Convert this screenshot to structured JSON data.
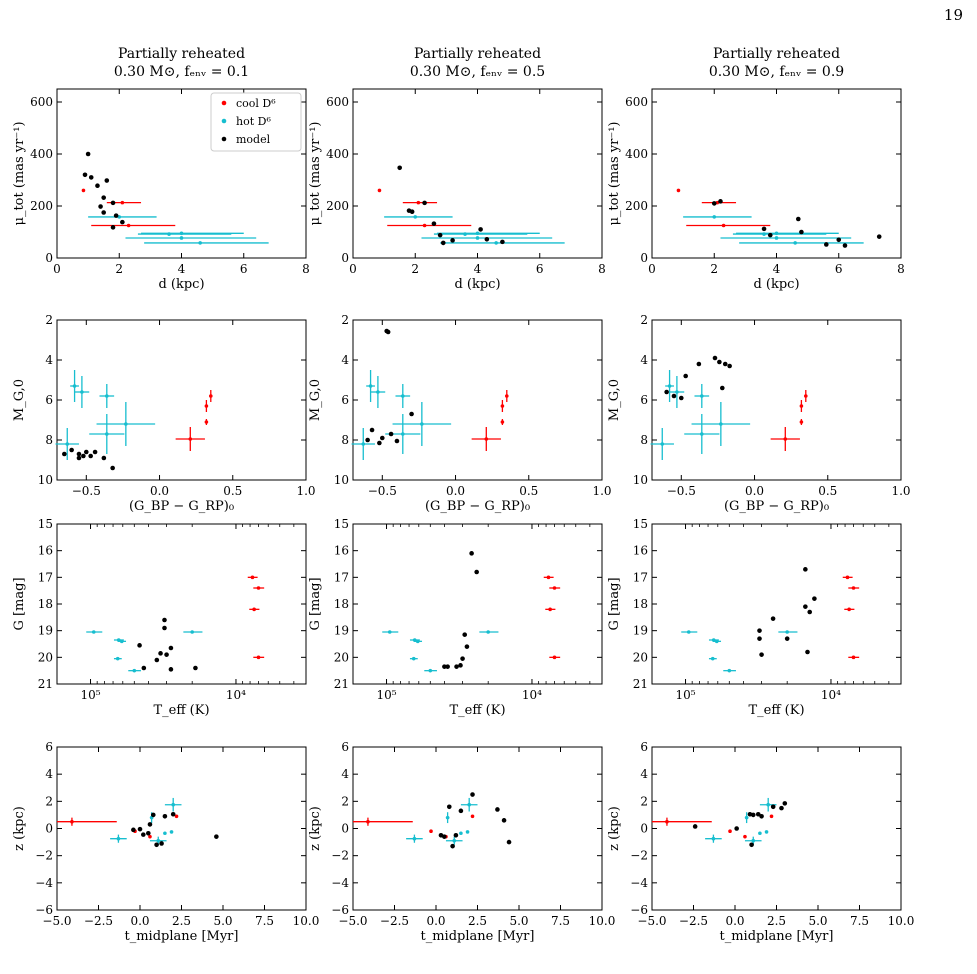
{
  "page": {
    "number": "19"
  },
  "colors": {
    "cool": "#ff0000",
    "hot": "#17becf",
    "model": "#000000"
  },
  "columns": [
    {
      "title_line1": "Partially reheated",
      "title_line2": "0.30 M⊙,  fₑₙᵥ = 0.1"
    },
    {
      "title_line1": "Partially reheated",
      "title_line2": "0.30 M⊙,  fₑₙᵥ = 0.5"
    },
    {
      "title_line1": "Partially reheated",
      "title_line2": "0.30 M⊙,  fₑₙᵥ = 0.9"
    }
  ],
  "legend": {
    "cool": "cool D⁶",
    "hot": "hot D⁶",
    "model": "model"
  },
  "chart_data": [
    {
      "type": "scatter",
      "row": "pm",
      "xlabel": "d (kpc)",
      "ylabel": "μ_tot (mas yr⁻¹)",
      "xlim": [
        0,
        8
      ],
      "ylim": [
        0,
        650
      ],
      "xticks": [
        0,
        2,
        4,
        6,
        8
      ],
      "yticks": [
        0,
        200,
        400,
        600
      ],
      "x_tick_labels": [
        "0",
        "2",
        "4",
        "6",
        "8"
      ],
      "y_tick_labels": [
        "0",
        "200",
        "400",
        "600"
      ],
      "cool": [
        {
          "x": 0.85,
          "y": 260
        },
        {
          "x": 2.1,
          "y": 213,
          "xerr": [
            0.5,
            0.6
          ]
        },
        {
          "x": 2.3,
          "y": 125,
          "xerr": [
            1.2,
            1.5
          ]
        }
      ],
      "hot": [
        {
          "x": 2.0,
          "y": 158,
          "xerr": [
            1.0,
            1.2
          ]
        },
        {
          "x": 3.6,
          "y": 92,
          "xerr": [
            1.0,
            2.0
          ]
        },
        {
          "x": 4.0,
          "y": 95,
          "xerr": [
            1.3,
            2.0
          ]
        },
        {
          "x": 4.0,
          "y": 77,
          "xerr": [
            1.8,
            2.4
          ]
        },
        {
          "x": 4.6,
          "y": 58,
          "xerr": [
            1.8,
            2.2
          ]
        }
      ],
      "model": [
        [
          [
            1.0,
            400
          ],
          [
            0.9,
            320
          ],
          [
            1.1,
            310
          ],
          [
            1.3,
            278
          ],
          [
            1.6,
            298
          ],
          [
            1.5,
            232
          ],
          [
            1.4,
            198
          ],
          [
            1.5,
            175
          ],
          [
            1.8,
            212
          ],
          [
            1.9,
            163
          ],
          [
            2.1,
            138
          ],
          [
            1.8,
            118
          ]
        ],
        [
          [
            1.5,
            347
          ],
          [
            1.8,
            182
          ],
          [
            1.9,
            178
          ],
          [
            2.3,
            212
          ],
          [
            2.6,
            132
          ],
          [
            2.8,
            88
          ],
          [
            2.9,
            58
          ],
          [
            3.2,
            68
          ],
          [
            4.1,
            110
          ],
          [
            4.3,
            72
          ],
          [
            4.8,
            62
          ]
        ],
        [
          [
            2.0,
            210
          ],
          [
            2.2,
            218
          ],
          [
            3.6,
            112
          ],
          [
            3.8,
            88
          ],
          [
            4.7,
            150
          ],
          [
            4.8,
            100
          ],
          [
            5.6,
            52
          ],
          [
            6.0,
            70
          ],
          [
            6.2,
            48
          ],
          [
            7.3,
            82
          ]
        ]
      ]
    },
    {
      "type": "scatter",
      "row": "cmd",
      "xlabel": "(G_BP − G_RP)₀",
      "ylabel": "M_G,0",
      "xlim": [
        -0.7,
        1.0
      ],
      "ylim": [
        10,
        2
      ],
      "y_inverted": true,
      "xticks": [
        -0.5,
        0.0,
        0.5,
        1.0
      ],
      "yticks": [
        2,
        4,
        6,
        8,
        10
      ],
      "x_tick_labels": [
        "−0.5",
        "0.0",
        "0.5",
        "1.0"
      ],
      "y_tick_labels": [
        "2",
        "4",
        "6",
        "8",
        "10"
      ],
      "cool": [
        {
          "x": 0.21,
          "y": 7.95,
          "xerr": [
            0.1,
            0.1
          ],
          "yerr": [
            0.6,
            0.6
          ]
        },
        {
          "x": 0.32,
          "y": 6.3,
          "yerr": [
            0.3,
            0.3
          ]
        },
        {
          "x": 0.35,
          "y": 5.8,
          "yerr": [
            0.3,
            0.3
          ]
        },
        {
          "x": 0.32,
          "y": 7.1,
          "yerr": [
            0.15,
            0.15
          ]
        }
      ],
      "hot": [
        {
          "x": -0.58,
          "y": 5.3,
          "xerr": [
            0.03,
            0.03
          ],
          "yerr": [
            0.8,
            0.8
          ]
        },
        {
          "x": -0.53,
          "y": 5.6,
          "xerr": [
            0.05,
            0.05
          ],
          "yerr": [
            0.8,
            0.8
          ]
        },
        {
          "x": -0.36,
          "y": 5.8,
          "xerr": [
            0.05,
            0.05
          ],
          "yerr": [
            0.6,
            0.6
          ]
        },
        {
          "x": -0.63,
          "y": 8.2,
          "xerr": [
            0.08,
            0.08
          ],
          "yerr": [
            0.8,
            0.8
          ]
        },
        {
          "x": -0.36,
          "y": 7.7,
          "xerr": [
            0.12,
            0.12
          ],
          "yerr": [
            1.0,
            1.0
          ]
        },
        {
          "x": -0.23,
          "y": 7.2,
          "xerr": [
            0.2,
            0.2
          ],
          "yerr": [
            1.1,
            1.1
          ]
        }
      ],
      "model": [
        [
          [
            -0.65,
            8.7
          ],
          [
            -0.6,
            8.5
          ],
          [
            -0.55,
            8.7
          ],
          [
            -0.52,
            8.8
          ],
          [
            -0.5,
            8.6
          ],
          [
            -0.47,
            8.8
          ],
          [
            -0.44,
            8.6
          ],
          [
            -0.38,
            8.9
          ],
          [
            -0.32,
            9.4
          ],
          [
            -0.55,
            8.9
          ]
        ],
        [
          [
            -0.47,
            2.55
          ],
          [
            -0.46,
            2.6
          ],
          [
            -0.3,
            6.7
          ],
          [
            -0.6,
            8.0
          ],
          [
            -0.57,
            7.5
          ],
          [
            -0.5,
            7.9
          ],
          [
            -0.44,
            7.7
          ],
          [
            -0.4,
            8.05
          ],
          [
            -0.52,
            8.15
          ]
        ],
        [
          [
            -0.6,
            5.6
          ],
          [
            -0.55,
            5.8
          ],
          [
            -0.5,
            5.9
          ],
          [
            -0.47,
            4.8
          ],
          [
            -0.38,
            4.2
          ],
          [
            -0.27,
            3.9
          ],
          [
            -0.24,
            4.1
          ],
          [
            -0.2,
            4.2
          ],
          [
            -0.17,
            4.3
          ],
          [
            -0.22,
            5.4
          ]
        ]
      ]
    },
    {
      "type": "scatter",
      "row": "teff",
      "xlabel": "T_eff (K)",
      "ylabel": "G [mag]",
      "xscale": "log",
      "x_inverted": true,
      "xlim": [
        170000,
        3300
      ],
      "ylim": [
        21,
        15
      ],
      "y_inverted": true,
      "xticks": [
        100000,
        10000
      ],
      "yticks": [
        15,
        16,
        17,
        18,
        19,
        20,
        21
      ],
      "x_tick_labels": [
        "10⁵",
        "10⁴"
      ],
      "y_tick_labels": [
        "15",
        "16",
        "17",
        "18",
        "19",
        "20",
        "21"
      ],
      "cool": [
        {
          "x": 7700,
          "y": 17.0,
          "xerr": [
            600,
            600
          ]
        },
        {
          "x": 7000,
          "y": 17.4,
          "xerr": [
            600,
            600
          ]
        },
        {
          "x": 7500,
          "y": 18.2,
          "xerr": [
            600,
            600
          ]
        },
        {
          "x": 7000,
          "y": 20.0,
          "xerr": [
            600,
            600
          ]
        }
      ],
      "hot": [
        {
          "x": 95000,
          "y": 19.05,
          "xerr": [
            12000,
            12000
          ]
        },
        {
          "x": 64000,
          "y": 19.35,
          "xerr": [
            5000,
            5000
          ]
        },
        {
          "x": 61000,
          "y": 19.4,
          "xerr": [
            4000,
            4000
          ]
        },
        {
          "x": 65000,
          "y": 20.05,
          "xerr": [
            4000,
            4000
          ]
        },
        {
          "x": 50000,
          "y": 20.5,
          "xerr": [
            5000,
            5000
          ]
        },
        {
          "x": 20000,
          "y": 19.05,
          "xerr": [
            3000,
            3000
          ]
        }
      ],
      "model": [
        [
          [
            46000,
            19.55
          ],
          [
            43000,
            20.4
          ],
          [
            31000,
            18.6
          ],
          [
            31000,
            18.9
          ],
          [
            28000,
            19.65
          ],
          [
            33000,
            19.85
          ],
          [
            30000,
            19.9
          ],
          [
            28000,
            20.45
          ],
          [
            19000,
            20.4
          ],
          [
            35000,
            20.1
          ]
        ],
        [
          [
            26000,
            16.1
          ],
          [
            24000,
            16.8
          ],
          [
            29000,
            19.15
          ],
          [
            28000,
            19.6
          ],
          [
            30000,
            20.05
          ],
          [
            31000,
            20.3
          ],
          [
            33000,
            20.35
          ],
          [
            38000,
            20.35
          ],
          [
            40000,
            20.35
          ]
        ],
        [
          [
            15000,
            16.7
          ],
          [
            15000,
            18.1
          ],
          [
            13000,
            17.8
          ],
          [
            14000,
            18.3
          ],
          [
            25000,
            18.55
          ],
          [
            31000,
            19.0
          ],
          [
            31000,
            19.3
          ],
          [
            30000,
            19.9
          ],
          [
            20000,
            19.3
          ],
          [
            14500,
            19.8
          ]
        ]
      ]
    },
    {
      "type": "scatter",
      "row": "z",
      "xlabel": "t_midplane [Myr]",
      "ylabel": "z (kpc)",
      "xlim": [
        -5,
        10
      ],
      "ylim": [
        -6,
        6
      ],
      "xticks": [
        -5,
        -2.5,
        0,
        2.5,
        5,
        7.5,
        10
      ],
      "yticks": [
        -6,
        -4,
        -2,
        0,
        2,
        4,
        6
      ],
      "x_tick_labels": [
        "−5.0",
        "−2.5",
        "0.0",
        "2.5",
        "5.0",
        "7.5",
        "10.0"
      ],
      "y_tick_labels": [
        "−6",
        "−4",
        "−2",
        "0",
        "2",
        "4",
        "6"
      ],
      "cool": [
        {
          "x": -4.1,
          "y": 0.5,
          "xerr": [
            0.9,
            2.7
          ],
          "yerr": [
            0.3,
            0.3
          ]
        },
        {
          "x": -0.3,
          "y": -0.2
        },
        {
          "x": 0.6,
          "y": -0.6
        },
        {
          "x": 2.2,
          "y": 0.9
        }
      ],
      "hot": [
        {
          "x": -1.3,
          "y": -0.75,
          "xerr": [
            0.5,
            0.5
          ],
          "yerr": [
            0.3,
            0.3
          ]
        },
        {
          "x": 0.7,
          "y": 0.8,
          "xerr": [
            0.1,
            0.1
          ],
          "yerr": [
            0.4,
            0.4
          ]
        },
        {
          "x": 1.1,
          "y": -0.9,
          "xerr": [
            0.5,
            0.5
          ],
          "yerr": [
            0.3,
            0.3
          ]
        },
        {
          "x": 2.0,
          "y": 1.75,
          "xerr": [
            0.5,
            0.5
          ],
          "yerr": [
            0.5,
            0.5
          ]
        },
        {
          "x": 1.5,
          "y": -0.35
        },
        {
          "x": 1.9,
          "y": -0.25
        }
      ],
      "model": [
        [
          [
            0.0,
            -0.05
          ],
          [
            0.2,
            -0.45
          ],
          [
            0.5,
            -0.35
          ],
          [
            0.6,
            0.3
          ],
          [
            0.8,
            1.0
          ],
          [
            1.0,
            -1.2
          ],
          [
            1.3,
            -1.1
          ],
          [
            1.5,
            0.9
          ],
          [
            2.0,
            1.05
          ],
          [
            4.6,
            -0.6
          ],
          [
            -0.4,
            -0.1
          ]
        ],
        [
          [
            0.3,
            -0.5
          ],
          [
            0.5,
            -0.6
          ],
          [
            0.8,
            1.6
          ],
          [
            1.0,
            -1.3
          ],
          [
            1.2,
            -0.5
          ],
          [
            1.5,
            1.3
          ],
          [
            2.2,
            2.5
          ],
          [
            3.7,
            1.4
          ],
          [
            4.1,
            0.6
          ],
          [
            4.4,
            -1.0
          ]
        ],
        [
          [
            -2.4,
            0.15
          ],
          [
            0.1,
            0.0
          ],
          [
            0.9,
            1.05
          ],
          [
            1.1,
            1.0
          ],
          [
            1.4,
            1.05
          ],
          [
            1.6,
            0.9
          ],
          [
            2.3,
            1.6
          ],
          [
            2.8,
            1.5
          ],
          [
            3.0,
            1.85
          ],
          [
            1.0,
            -1.2
          ]
        ]
      ]
    }
  ]
}
